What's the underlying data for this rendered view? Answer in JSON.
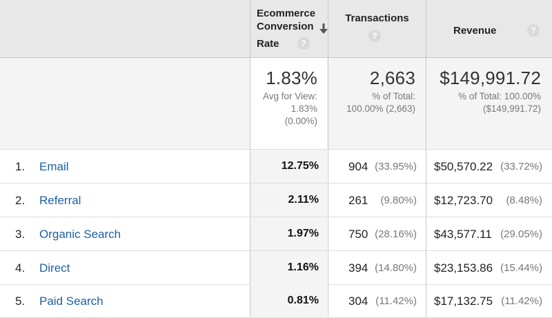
{
  "columns": {
    "rate": {
      "line1": "Ecommerce",
      "line2": "Conversion",
      "line3": "Rate",
      "sort_icon": "arrow-down-icon",
      "help_icon": "question-icon"
    },
    "transactions": {
      "label": "Transactions",
      "help_icon": "question-icon"
    },
    "revenue": {
      "label": "Revenue",
      "help_icon": "question-icon"
    }
  },
  "help_glyph": "?",
  "summary": {
    "rate": {
      "value": "1.83%",
      "line1": "Avg for View:",
      "line2": "1.83%",
      "line3": "(0.00%)"
    },
    "transactions": {
      "value": "2,663",
      "line1": "% of Total:",
      "line2": "100.00% (2,663)"
    },
    "revenue": {
      "value": "$149,991.72",
      "line1": "% of Total: 100.00%",
      "line2": "($149,991.72)"
    }
  },
  "rows": [
    {
      "index": "1.",
      "name": "Email",
      "rate": "12.75%",
      "transactions": "904",
      "transactions_pct": "(33.95%)",
      "revenue": "$50,570.22",
      "revenue_pct": "(33.72%)"
    },
    {
      "index": "2.",
      "name": "Referral",
      "rate": "2.11%",
      "transactions": "261",
      "transactions_pct": "(9.80%)",
      "revenue": "$12,723.70",
      "revenue_pct": "(8.48%)"
    },
    {
      "index": "3.",
      "name": "Organic Search",
      "rate": "1.97%",
      "transactions": "750",
      "transactions_pct": "(28.16%)",
      "revenue": "$43,577.11",
      "revenue_pct": "(29.05%)"
    },
    {
      "index": "4.",
      "name": "Direct",
      "rate": "1.16%",
      "transactions": "394",
      "transactions_pct": "(14.80%)",
      "revenue": "$23,153.86",
      "revenue_pct": "(15.44%)"
    },
    {
      "index": "5.",
      "name": "Paid Search",
      "rate": "0.81%",
      "transactions": "304",
      "transactions_pct": "(11.42%)",
      "revenue": "$17,132.75",
      "revenue_pct": "(11.42%)"
    }
  ]
}
